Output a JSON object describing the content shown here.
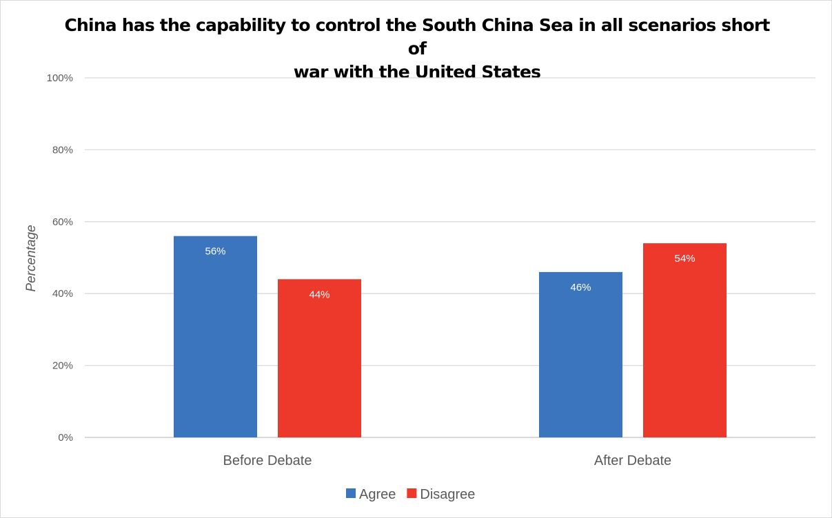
{
  "chart_data": {
    "type": "bar",
    "title": "China has the capability to control the South China Sea in all scenarios short of war with the United States",
    "title_lines": [
      "China has the capability to control the South China Sea in all scenarios short of",
      "war with the United States"
    ],
    "xlabel": "",
    "ylabel": "Percentage",
    "ylim": [
      0,
      100
    ],
    "yticks": [
      "0%",
      "20%",
      "40%",
      "60%",
      "80%",
      "100%"
    ],
    "ytick_values": [
      0,
      20,
      40,
      60,
      80,
      100
    ],
    "grid": true,
    "legend_position": "bottom",
    "categories": [
      "Before Debate",
      "After Debate"
    ],
    "series": [
      {
        "name": "Agree",
        "color": "#3b75bd",
        "values": [
          56,
          46
        ],
        "labels": [
          "56%",
          "46%"
        ]
      },
      {
        "name": "Disagree",
        "color": "#ec392b",
        "values": [
          44,
          54
        ],
        "labels": [
          "44%",
          "54%"
        ]
      }
    ]
  }
}
